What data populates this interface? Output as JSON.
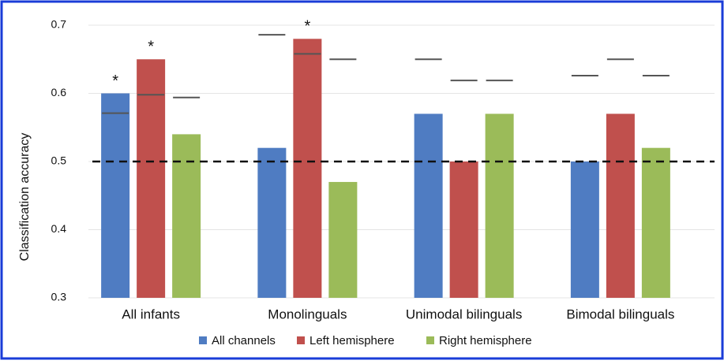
{
  "chart_data": {
    "type": "bar",
    "y_label": "Classification accuracy",
    "categories": [
      "All infants",
      "Monolinguals",
      "Unimodal bilinguals",
      "Bimodal bilinguals"
    ],
    "series": [
      {
        "name": "All channels",
        "color": "#4f7cc2",
        "values": [
          0.6,
          0.52,
          0.57,
          0.5
        ],
        "thresholds": [
          0.571,
          0.686,
          0.65,
          0.626
        ],
        "markers": [
          "*",
          null,
          null,
          null
        ]
      },
      {
        "name": "Left hemisphere",
        "color": "#c0504d",
        "values": [
          0.65,
          0.68,
          0.5,
          0.57
        ],
        "thresholds": [
          0.598,
          0.658,
          0.619,
          0.65
        ],
        "markers": [
          "*",
          "*",
          null,
          null
        ]
      },
      {
        "name": "Right hemisphere",
        "color": "#9bbb59",
        "values": [
          0.54,
          0.47,
          0.57,
          0.52
        ],
        "thresholds": [
          0.594,
          0.65,
          0.619,
          0.626
        ],
        "markers": [
          null,
          null,
          null,
          null
        ]
      }
    ],
    "reference_line": 0.5,
    "ylim": [
      0.3,
      0.7
    ],
    "yticks": [
      0.3,
      0.4,
      0.5,
      0.6,
      0.7
    ],
    "grid": true,
    "legend": "bottom"
  }
}
